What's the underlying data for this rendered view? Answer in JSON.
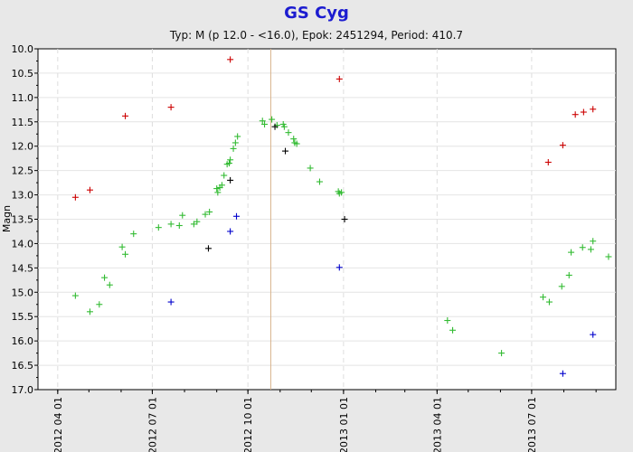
{
  "chart_data": {
    "type": "scatter",
    "title": "GS Cyg",
    "subtitle": "Typ: M (p 12.0 - <16.0), Epok: 2451294, Period: 410.7",
    "ylabel": "Magn",
    "xlabel": "",
    "y_inverted": true,
    "ylim": [
      10.0,
      17.0
    ],
    "yticks": [
      "10.0",
      "10.5",
      "11.0",
      "11.5",
      "12.0",
      "12.5",
      "13.0",
      "13.5",
      "14.0",
      "14.5",
      "15.0",
      "15.5",
      "16.0",
      "16.5",
      "17.0"
    ],
    "xlim": [
      "2012-03-13",
      "2013-09-20"
    ],
    "xticks": [
      "2012 04 01",
      "2012 07 01",
      "2012 10 01",
      "2013 01 01",
      "2013 04 01",
      "2013 07 01"
    ],
    "grid": true,
    "vline_date": "2012-10-23",
    "colors": {
      "red": "#cc0000",
      "green": "#33bb33",
      "black": "#000000",
      "blue": "#0000cc",
      "vline": "#d9b38c"
    },
    "series": [
      {
        "color": "red",
        "points": [
          [
            "2012-04-18",
            13.05
          ],
          [
            "2012-05-02",
            12.9
          ],
          [
            "2012-05-36",
            11.38
          ],
          [
            "2012-07-19",
            11.2
          ],
          [
            "2012-09-14",
            10.22
          ],
          [
            "2012-12-28",
            10.62
          ],
          [
            "2013-07-17",
            12.33
          ],
          [
            "2013-07-31",
            11.98
          ],
          [
            "2013-08-12",
            11.35
          ],
          [
            "2013-08-20",
            11.3
          ],
          [
            "2013-08-29",
            11.24
          ]
        ]
      },
      {
        "color": "green",
        "points": [
          [
            "2012-04-18",
            15.07
          ],
          [
            "2012-05-02",
            15.4
          ],
          [
            "2012-05-11",
            15.25
          ],
          [
            "2012-05-16",
            14.7
          ],
          [
            "2012-05-21",
            14.85
          ],
          [
            "2012-05-33",
            14.07
          ],
          [
            "2012-05-36",
            14.22
          ],
          [
            "2012-06-13",
            13.8
          ],
          [
            "2012-07-07",
            13.67
          ],
          [
            "2012-07-19",
            13.6
          ],
          [
            "2012-07-27",
            13.63
          ],
          [
            "2012-07-30",
            13.42
          ],
          [
            "2012-08-10",
            13.6
          ],
          [
            "2012-08-13",
            13.55
          ],
          [
            "2012-08-21",
            13.4
          ],
          [
            "2012-08-25",
            13.35
          ],
          [
            "2012-09-01",
            12.87
          ],
          [
            "2012-09-02",
            12.95
          ],
          [
            "2012-09-04",
            12.85
          ],
          [
            "2012-09-06",
            12.8
          ],
          [
            "2012-09-08",
            12.6
          ],
          [
            "2012-09-11",
            12.37
          ],
          [
            "2012-09-13",
            12.35
          ],
          [
            "2012-09-14",
            12.28
          ],
          [
            "2012-09-17",
            12.05
          ],
          [
            "2012-09-19",
            11.93
          ],
          [
            "2012-09-21",
            11.8
          ],
          [
            "2012-10-15",
            11.48
          ],
          [
            "2012-10-17",
            11.55
          ],
          [
            "2012-10-24",
            11.45
          ],
          [
            "2012-10-29",
            11.57
          ],
          [
            "2012-11-04",
            11.55
          ],
          [
            "2012-11-05",
            11.6
          ],
          [
            "2012-11-09",
            11.72
          ],
          [
            "2012-11-14",
            11.85
          ],
          [
            "2012-11-15",
            11.93
          ],
          [
            "2012-11-17",
            11.95
          ],
          [
            "2012-11-30",
            12.45
          ],
          [
            "2012-12-09",
            12.73
          ],
          [
            "2012-12-27",
            12.93
          ],
          [
            "2012-12-28",
            12.97
          ],
          [
            "2012-12-30",
            12.95
          ],
          [
            "2013-04-11",
            15.58
          ],
          [
            "2013-04-16",
            15.78
          ],
          [
            "2013-06-02",
            16.25
          ],
          [
            "2013-07-12",
            15.1
          ],
          [
            "2013-07-18",
            15.2
          ],
          [
            "2013-07-30",
            14.88
          ],
          [
            "2013-08-06",
            14.65
          ],
          [
            "2013-08-08",
            14.18
          ],
          [
            "2013-08-19",
            14.08
          ],
          [
            "2013-08-27",
            14.12
          ],
          [
            "2013-08-29",
            13.95
          ],
          [
            "2013-09-13",
            14.27
          ]
        ]
      },
      {
        "color": "black",
        "points": [
          [
            "2012-08-24",
            14.1
          ],
          [
            "2012-09-14",
            12.7
          ],
          [
            "2012-10-27",
            11.6
          ],
          [
            "2012-11-06",
            12.1
          ],
          [
            "2013-01-02",
            13.5
          ]
        ]
      },
      {
        "color": "blue",
        "points": [
          [
            "2012-07-19",
            15.2
          ],
          [
            "2012-09-14",
            13.75
          ],
          [
            "2012-09-20",
            13.44
          ],
          [
            "2012-12-28",
            14.49
          ],
          [
            "2013-07-31",
            16.67
          ],
          [
            "2013-08-29",
            15.87
          ]
        ]
      }
    ]
  }
}
